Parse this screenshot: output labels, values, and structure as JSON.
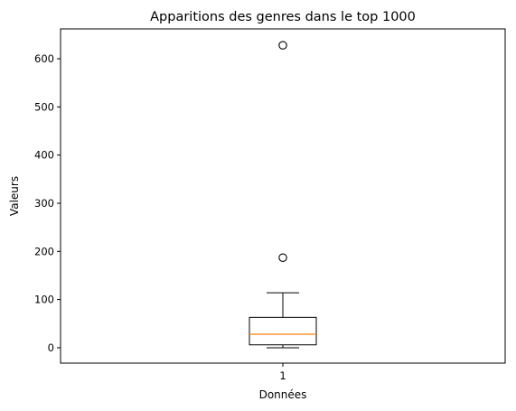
{
  "chart_data": {
    "type": "box",
    "title": "Apparitions des genres dans le top 1000",
    "xlabel": "Données",
    "ylabel": "Valeurs",
    "categories": [
      "1"
    ],
    "ylim": [
      -32,
      662
    ],
    "yticks": [
      0,
      100,
      200,
      300,
      400,
      500,
      600
    ],
    "grid": false,
    "box": {
      "whisker_low": 0,
      "q1": 6,
      "median": 28,
      "q3": 63,
      "whisker_high": 114,
      "outliers": [
        187,
        628
      ]
    },
    "colors": {
      "box": "#000000",
      "median": "#ff7f0e",
      "outlier_edge": "#000000"
    }
  }
}
